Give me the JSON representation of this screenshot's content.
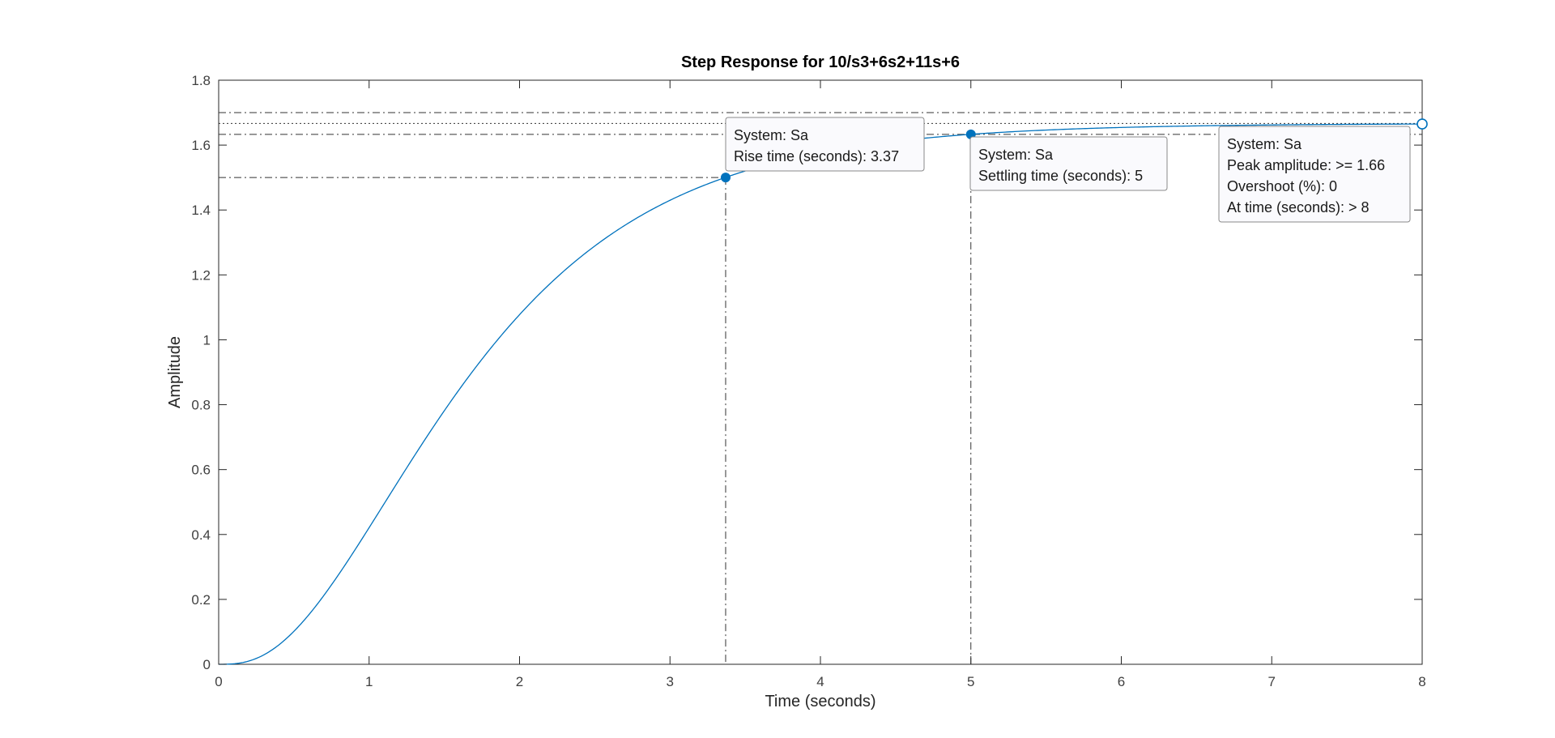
{
  "chart_data": {
    "type": "line",
    "title": "Step Response for 10/s3+6s2+11s+6",
    "xlabel": "Time (seconds)",
    "ylabel": "Amplitude",
    "xlim": [
      0,
      8
    ],
    "ylim": [
      0,
      1.8
    ],
    "xticks": [
      "0",
      "1",
      "2",
      "3",
      "4",
      "5",
      "6",
      "7",
      "8"
    ],
    "yticks": [
      "0",
      "0.2",
      "0.4",
      "0.6",
      "0.8",
      "1",
      "1.2",
      "1.4",
      "1.6",
      "1.8"
    ],
    "grid": false,
    "line_color": "#0072bd",
    "series": [
      {
        "transfer_function": "10/(s^3+6s^2+11s+6)",
        "final_value": 1.6667
      }
    ],
    "characteristics": {
      "rise_time": 3.37,
      "rise_level": 1.5,
      "settling_time": 5,
      "settling_level": 1.633,
      "peak_amplitude": 1.66,
      "peak_time": 8,
      "upper_band": 1.7,
      "lower_band": 1.633
    },
    "annotations": [
      {
        "id": "rise",
        "lines": [
          "System: Sa",
          "Rise time (seconds): 3.37"
        ]
      },
      {
        "id": "settling",
        "lines": [
          "System: Sa",
          "Settling time (seconds): 5"
        ]
      },
      {
        "id": "peak",
        "lines": [
          "System: Sa",
          "Peak amplitude: >= 1.66",
          "Overshoot (%): 0",
          "At time (seconds): > 8"
        ]
      }
    ]
  }
}
